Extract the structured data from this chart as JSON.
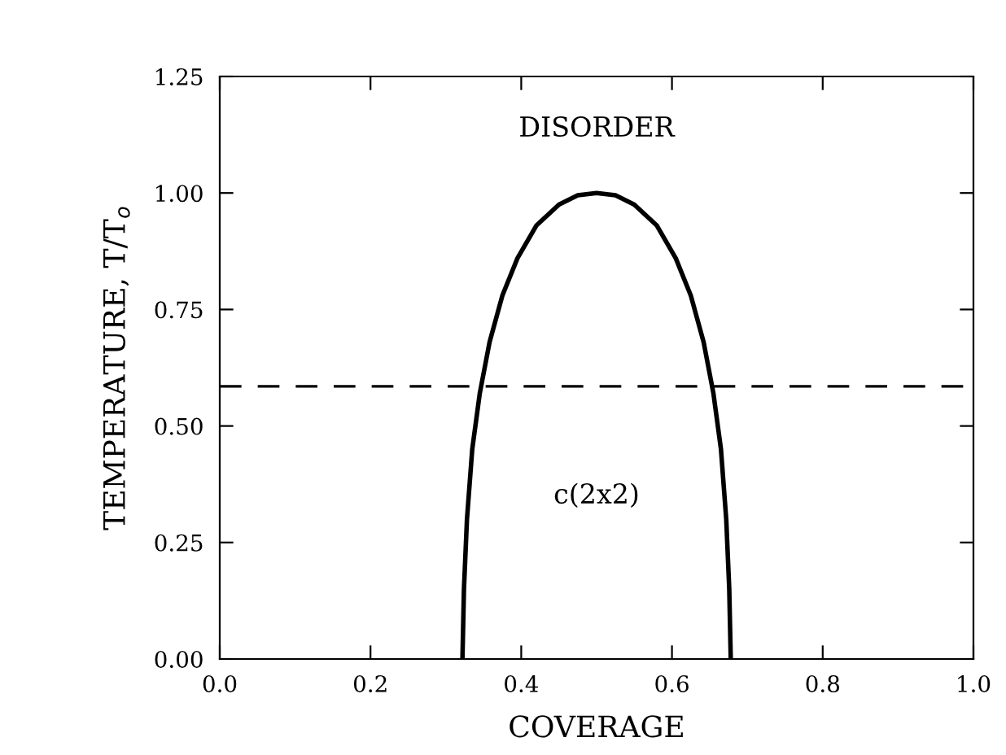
{
  "chart_data": {
    "type": "line",
    "xlabel": "COVERAGE",
    "ylabel": "TEMPERATURE, T/T$_{o}$",
    "x": [
      0.322,
      0.324,
      0.328,
      0.335,
      0.345,
      0.358,
      0.375,
      0.395,
      0.42,
      0.45,
      0.475,
      0.5,
      0.525,
      0.55,
      0.58,
      0.605,
      0.625,
      0.642,
      0.655,
      0.665,
      0.672,
      0.676,
      0.678
    ],
    "series": [
      {
        "color": "#000000",
        "values": [
          0,
          0.15,
          0.3,
          0.45,
          0.57,
          0.68,
          0.78,
          0.86,
          0.93,
          0.975,
          0.995,
          1.0,
          0.995,
          0.975,
          0.93,
          0.86,
          0.78,
          0.68,
          0.57,
          0.45,
          0.3,
          0.15,
          0
        ]
      }
    ],
    "xlim": [
      0.0,
      1.0
    ],
    "xticks": [
      {
        "value": 0,
        "label": "0.0"
      },
      0.2,
      0.4,
      0.6,
      0.8,
      {
        "value": 1,
        "label": "1.0"
      }
    ],
    "ylim": [
      0.0,
      1.25
    ],
    "yticks": [
      {
        "value": 0,
        "label": "0.00"
      },
      0.25,
      {
        "value": 0.5,
        "label": "0.50"
      },
      0.75,
      {
        "value": 1,
        "label": "1.00"
      },
      1.25
    ],
    "ref_lines": [
      {
        "axis": "y",
        "value": 0.585,
        "color": "#000000",
        "line_style": "dashed"
      }
    ],
    "annotations": [
      "DISORDER",
      "c(2x2)"
    ],
    "grid": false,
    "legend": false,
    "marker": "none",
    "line_style": "solid"
  }
}
